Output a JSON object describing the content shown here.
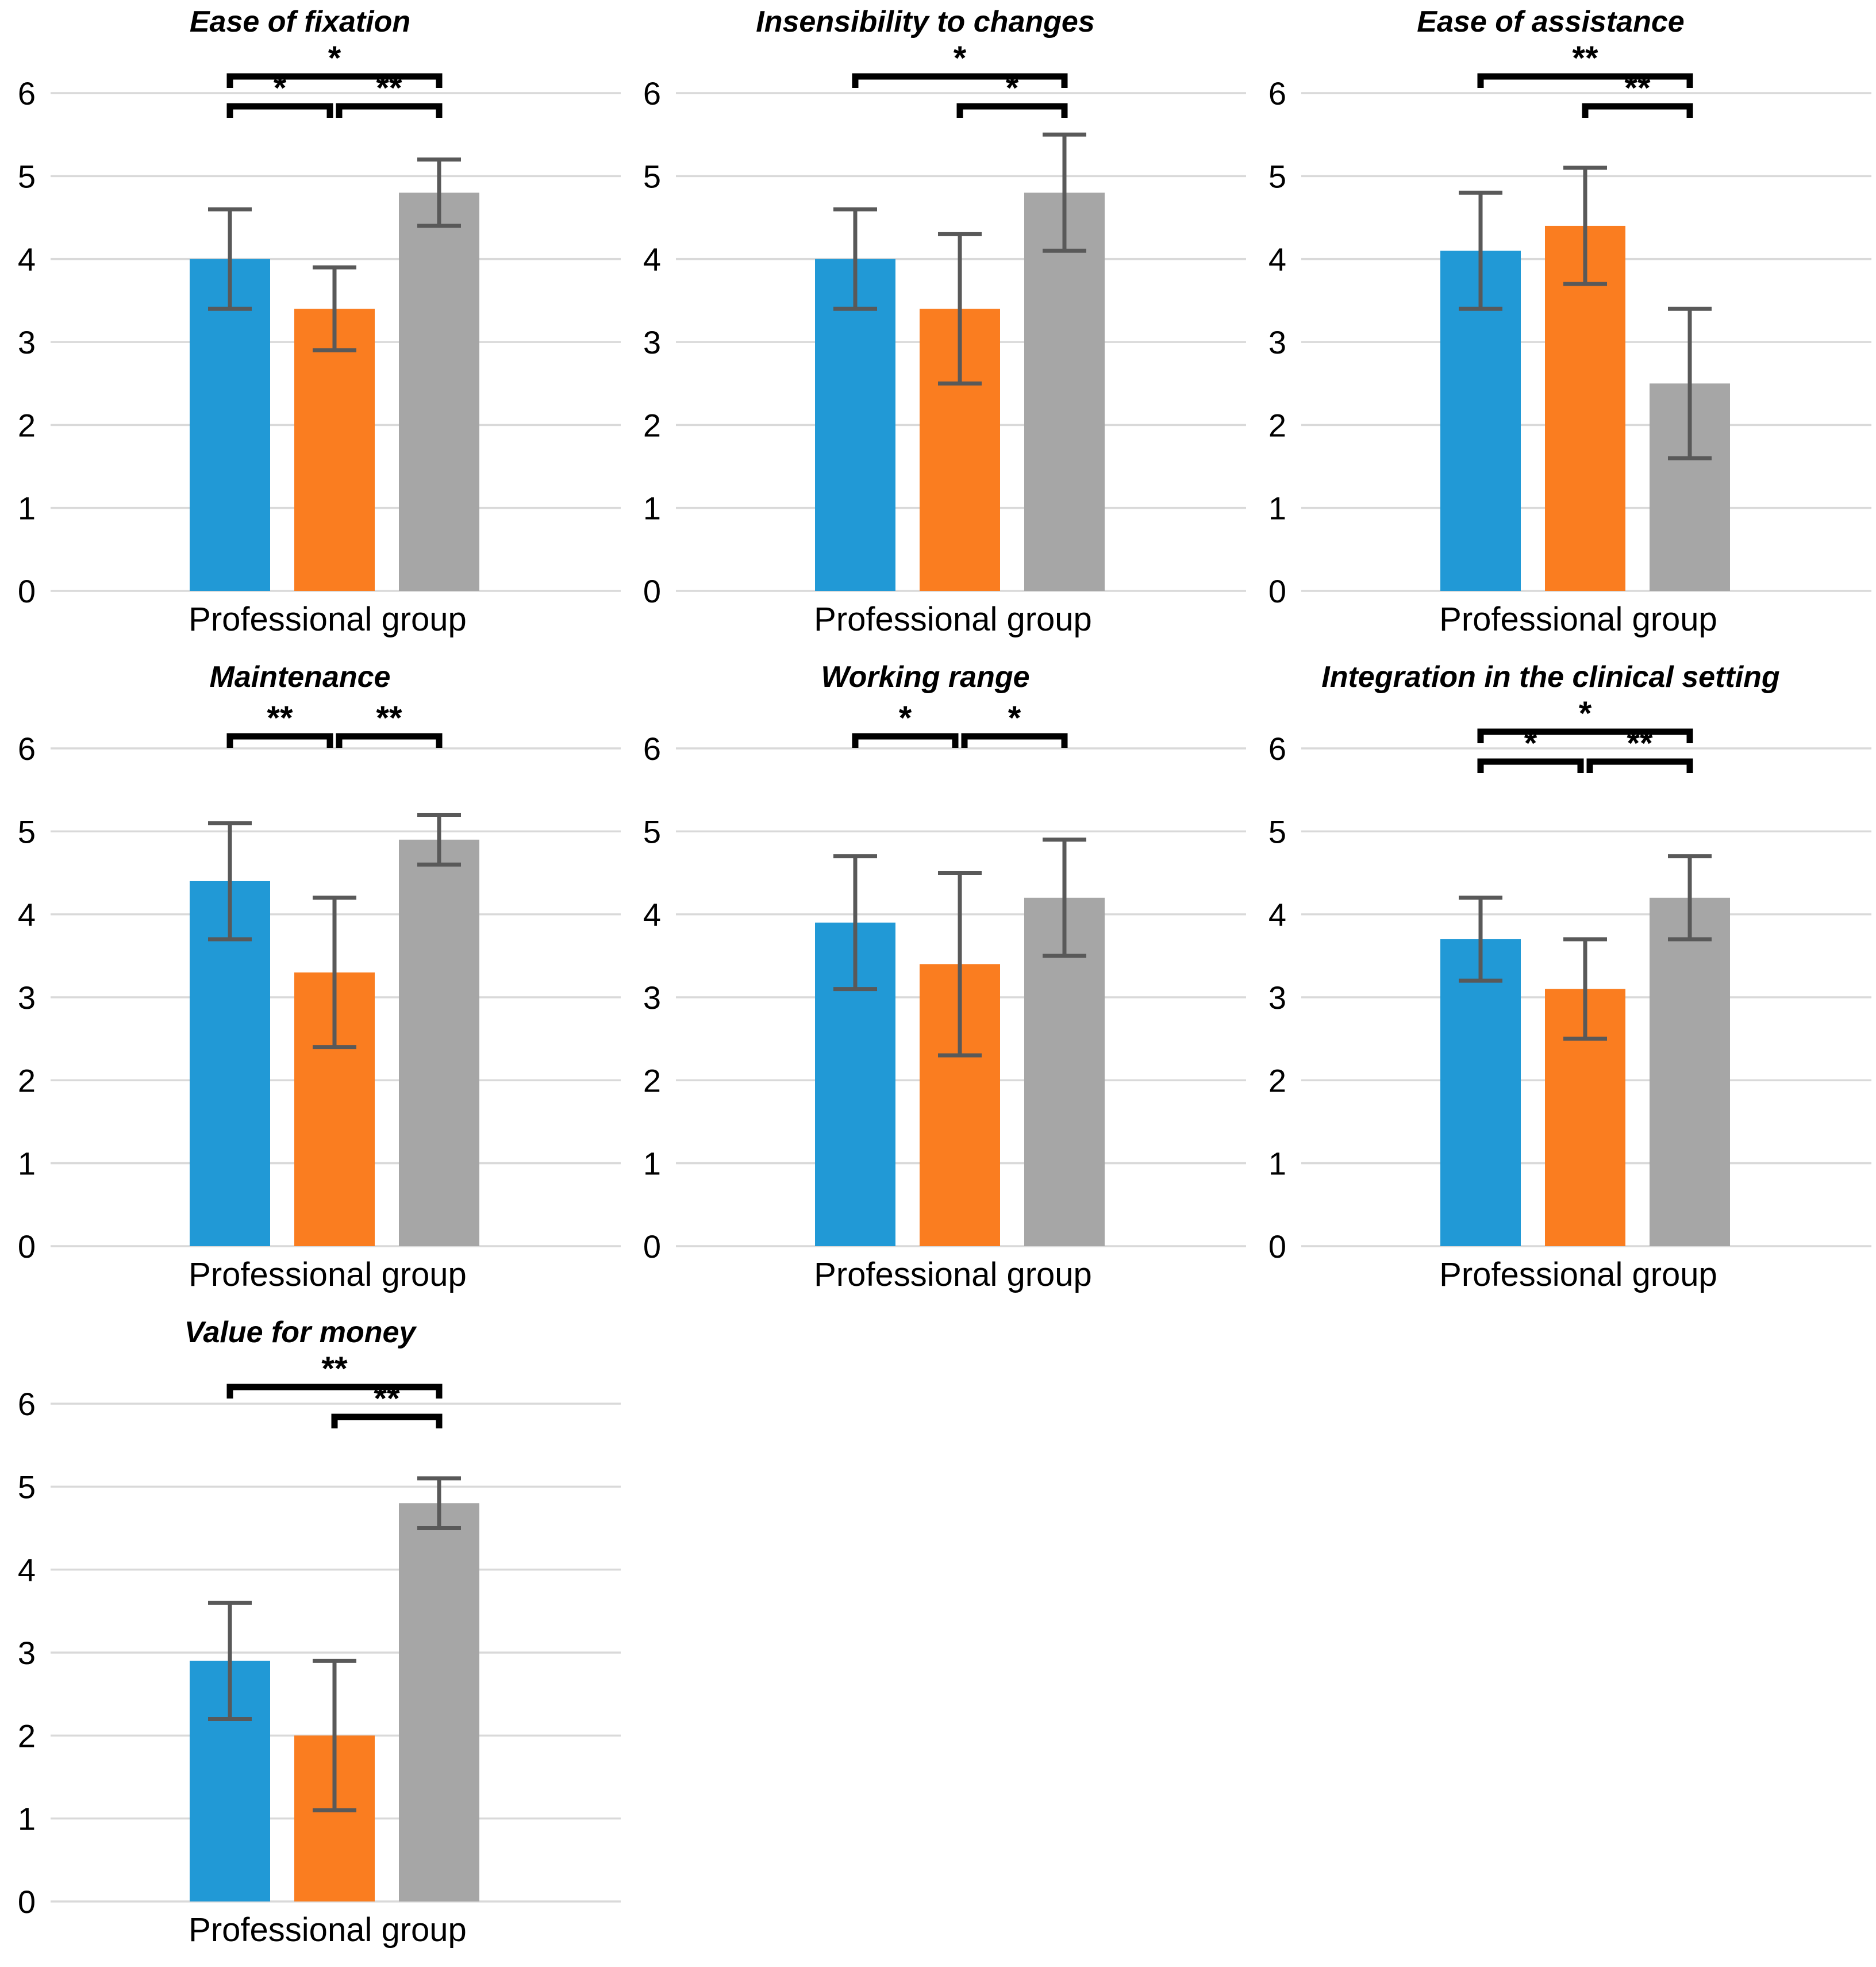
{
  "figure": {
    "background": "#ffffff"
  },
  "colors": {
    "bars": [
      "#2199d6",
      "#fa7d20",
      "#a6a6a6"
    ],
    "error_bar": "#595959",
    "gridline": "#d9d9d9",
    "text": "#000000",
    "significance": "#000000"
  },
  "chart_data": [
    {
      "type": "bar",
      "title": "Ease of fixation",
      "xlabel": "Professional group",
      "ylabel": "",
      "ylim": [
        0,
        6
      ],
      "yticks": [
        0,
        1,
        2,
        3,
        4,
        5,
        6
      ],
      "grid": true,
      "legend": "none",
      "values": [
        4.0,
        3.4,
        4.8
      ],
      "errors": [
        0.6,
        0.5,
        0.4
      ],
      "significance": [
        {
          "from": 0,
          "to": 2,
          "label": "*",
          "row": "top"
        },
        {
          "from": 0,
          "to": 1,
          "label": "*",
          "row": "bottom"
        },
        {
          "from": 1,
          "to": 2,
          "label": "**",
          "row": "bottom"
        }
      ]
    },
    {
      "type": "bar",
      "title": "Insensibility to changes",
      "xlabel": "Professional group",
      "ylabel": "",
      "ylim": [
        0,
        6
      ],
      "yticks": [
        0,
        1,
        2,
        3,
        4,
        5,
        6
      ],
      "grid": true,
      "legend": "none",
      "values": [
        4.0,
        3.4,
        4.8
      ],
      "errors": [
        0.6,
        0.9,
        0.7
      ],
      "significance": [
        {
          "from": 0,
          "to": 2,
          "label": "*",
          "row": "top"
        },
        {
          "from": 1,
          "to": 2,
          "label": "*",
          "row": "bottom"
        }
      ]
    },
    {
      "type": "bar",
      "title": "Ease of assistance",
      "xlabel": "Professional group",
      "ylabel": "",
      "ylim": [
        0,
        6
      ],
      "yticks": [
        0,
        1,
        2,
        3,
        4,
        5,
        6
      ],
      "grid": true,
      "legend": "none",
      "values": [
        4.1,
        4.4,
        2.5
      ],
      "errors": [
        0.7,
        0.7,
        0.9
      ],
      "significance": [
        {
          "from": 0,
          "to": 2,
          "label": "**",
          "row": "top"
        },
        {
          "from": 1,
          "to": 2,
          "label": "**",
          "row": "bottom"
        }
      ]
    },
    {
      "type": "bar",
      "title": "Maintenance",
      "xlabel": "Professional group",
      "ylabel": "",
      "ylim": [
        0,
        6
      ],
      "yticks": [
        0,
        1,
        2,
        3,
        4,
        5,
        6
      ],
      "grid": true,
      "legend": "none",
      "values": [
        4.4,
        3.3,
        4.9
      ],
      "errors": [
        0.7,
        0.9,
        0.3
      ],
      "significance": [
        {
          "from": 0,
          "to": 1,
          "label": "**",
          "row": "single"
        },
        {
          "from": 1,
          "to": 2,
          "label": "**",
          "row": "single"
        }
      ]
    },
    {
      "type": "bar",
      "title": "Working range",
      "xlabel": "Professional group",
      "ylabel": "",
      "ylim": [
        0,
        6
      ],
      "yticks": [
        0,
        1,
        2,
        3,
        4,
        5,
        6
      ],
      "grid": true,
      "legend": "none",
      "values": [
        3.9,
        3.4,
        4.2
      ],
      "errors": [
        0.8,
        1.1,
        0.7
      ],
      "significance": [
        {
          "from": 0,
          "to": 1,
          "label": "*",
          "row": "single"
        },
        {
          "from": 1,
          "to": 2,
          "label": "*",
          "row": "single"
        }
      ]
    },
    {
      "type": "bar",
      "title": "Integration in the clinical setting",
      "xlabel": "Professional group",
      "ylabel": "",
      "ylim": [
        0,
        6
      ],
      "yticks": [
        0,
        1,
        2,
        3,
        4,
        5,
        6
      ],
      "grid": true,
      "legend": "none",
      "values": [
        3.7,
        3.1,
        4.2
      ],
      "errors": [
        0.5,
        0.6,
        0.5
      ],
      "significance": [
        {
          "from": 0,
          "to": 2,
          "label": "*",
          "row": "top"
        },
        {
          "from": 0,
          "to": 1,
          "label": "*",
          "row": "bottom"
        },
        {
          "from": 1,
          "to": 2,
          "label": "**",
          "row": "bottom"
        }
      ]
    },
    {
      "type": "bar",
      "title": "Value for money",
      "xlabel": "Professional group",
      "ylabel": "",
      "ylim": [
        0,
        6
      ],
      "yticks": [
        0,
        1,
        2,
        3,
        4,
        5,
        6
      ],
      "grid": true,
      "legend": "none",
      "values": [
        2.9,
        2.0,
        4.8
      ],
      "errors": [
        0.7,
        0.9,
        0.3
      ],
      "significance": [
        {
          "from": 0,
          "to": 2,
          "label": "**",
          "row": "top"
        },
        {
          "from": 1,
          "to": 2,
          "label": "**",
          "row": "bottom"
        }
      ]
    }
  ]
}
